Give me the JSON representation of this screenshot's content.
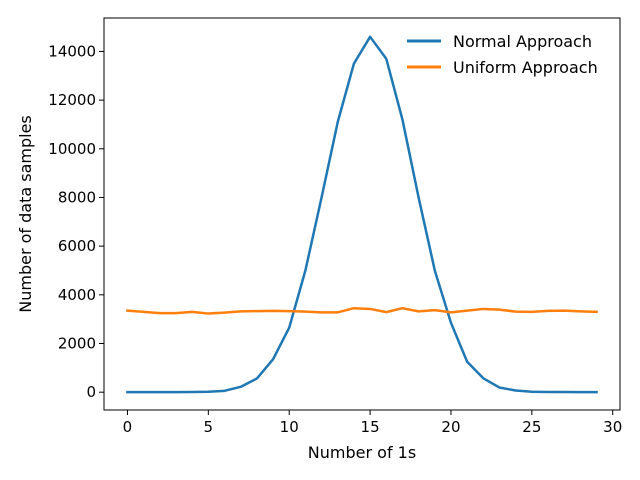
{
  "chart_data": {
    "type": "line",
    "xlabel": "Number of 1s",
    "ylabel": "Number of data samples",
    "xlim": [
      -1.45,
      30.45
    ],
    "ylim": [
      -732,
      15373
    ],
    "x_ticks": [
      0,
      5,
      10,
      15,
      20,
      25,
      30
    ],
    "y_ticks": [
      0,
      2000,
      4000,
      6000,
      8000,
      10000,
      12000,
      14000
    ],
    "grid": false,
    "legend_position": "top-right",
    "x": [
      0,
      1,
      2,
      3,
      4,
      5,
      6,
      7,
      8,
      9,
      10,
      11,
      12,
      13,
      14,
      15,
      16,
      17,
      18,
      19,
      20,
      21,
      22,
      23,
      24,
      25,
      26,
      27,
      28,
      29
    ],
    "series": [
      {
        "name": "Normal Approach",
        "color": "#1f77b4",
        "values": [
          0,
          0,
          0,
          0,
          5,
          20,
          55,
          220,
          560,
          1350,
          2650,
          5000,
          8000,
          11100,
          13500,
          14600,
          13700,
          11200,
          8000,
          5000,
          2850,
          1250,
          570,
          190,
          70,
          20,
          10,
          5,
          3,
          0
        ]
      },
      {
        "name": "Uniform Approach",
        "color": "#ff7f0e",
        "values": [
          3350,
          3300,
          3250,
          3250,
          3300,
          3230,
          3270,
          3320,
          3330,
          3340,
          3330,
          3310,
          3280,
          3280,
          3450,
          3420,
          3290,
          3450,
          3320,
          3370,
          3280,
          3350,
          3420,
          3390,
          3310,
          3300,
          3340,
          3350,
          3320,
          3300
        ]
      }
    ]
  }
}
